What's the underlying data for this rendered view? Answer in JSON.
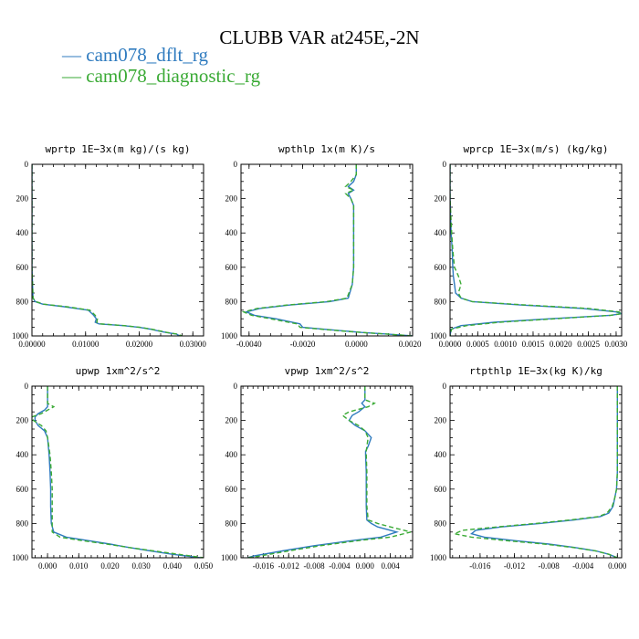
{
  "figure": {
    "title": "CLUBB VAR at245E,-2N"
  },
  "legend": [
    {
      "label": "— cam078_dflt_rg",
      "color": "#2f7bbf"
    },
    {
      "label": "— cam078_diagnostic_rg",
      "color": "#3aaa35"
    }
  ],
  "chart_data": [
    {
      "type": "line",
      "title": "wprtp  1E−3x(m kg)/(s kg)",
      "xlim": [
        0,
        0.032
      ],
      "ylim": [
        1000,
        0
      ],
      "xticks": [
        0.0,
        0.01,
        0.02,
        0.03
      ],
      "xtick_labels": [
        "0.00000",
        "0.01000",
        "0.02000",
        "0.03000"
      ],
      "yticks": [
        0,
        200,
        400,
        600,
        800,
        1000
      ],
      "ytick_labels": [
        "0",
        "200",
        "400",
        "600",
        "800",
        "1000"
      ],
      "series": [
        {
          "name": "cam078_dflt_rg",
          "color": "#2f7bbf",
          "dash": "",
          "y": [
            0,
            200,
            400,
            600,
            780,
            800,
            815,
            830,
            850,
            880,
            900,
            920,
            930,
            940,
            950,
            960,
            970,
            980,
            990,
            1000
          ],
          "x": [
            0,
            0,
            0,
            0,
            0.0002,
            0.0006,
            0.002,
            0.006,
            0.0105,
            0.0115,
            0.012,
            0.0118,
            0.0125,
            0.017,
            0.02,
            0.022,
            0.0235,
            0.025,
            0.027,
            0.0275
          ]
        },
        {
          "name": "cam078_diagnostic_rg",
          "color": "#3aaa35",
          "dash": "5,3",
          "y": [
            0,
            200,
            400,
            600,
            780,
            800,
            815,
            830,
            850,
            880,
            900,
            920,
            930,
            940,
            950,
            960,
            970,
            980,
            990,
            1000
          ],
          "x": [
            0,
            0,
            0,
            0,
            0.0002,
            0.0007,
            0.0022,
            0.0065,
            0.0108,
            0.0118,
            0.0122,
            0.0121,
            0.0128,
            0.0172,
            0.0202,
            0.0222,
            0.0238,
            0.0252,
            0.0272,
            0.028
          ]
        }
      ]
    },
    {
      "type": "line",
      "title": "wpthlp  1x(m K)/s",
      "xlim": [
        -0.0043,
        0.0021
      ],
      "ylim": [
        1000,
        0
      ],
      "xticks": [
        -0.004,
        -0.002,
        0.0,
        0.002
      ],
      "xtick_labels": [
        "-0.0040",
        "-0.0020",
        "0.0000",
        "0.0020"
      ],
      "yticks": [
        0,
        200,
        400,
        600,
        800,
        1000
      ],
      "ytick_labels": [
        "0",
        "200",
        "400",
        "600",
        "800",
        "1000"
      ],
      "series": [
        {
          "name": "cam078_dflt_rg",
          "color": "#2f7bbf",
          "dash": "",
          "y": [
            0,
            60,
            100,
            130,
            150,
            170,
            200,
            240,
            300,
            400,
            500,
            600,
            700,
            780,
            800,
            820,
            840,
            860,
            880,
            900,
            930,
            950,
            970,
            980,
            990,
            1000
          ],
          "x": [
            0,
            0,
            -0.0001,
            -0.0003,
            -0.0001,
            -0.0003,
            -0.0002,
            -0.0001,
            -0.0001,
            -0.0001,
            -0.0001,
            -0.0001,
            -0.00015,
            -0.0003,
            -0.001,
            -0.0025,
            -0.0036,
            -0.0041,
            -0.0038,
            -0.003,
            -0.0021,
            -0.002,
            -0.0005,
            0.0002,
            0.0012,
            0.0021
          ]
        },
        {
          "name": "cam078_diagnostic_rg",
          "color": "#3aaa35",
          "dash": "5,3",
          "y": [
            0,
            60,
            100,
            130,
            150,
            170,
            200,
            240,
            300,
            400,
            500,
            600,
            700,
            780,
            800,
            820,
            840,
            860,
            880,
            900,
            930,
            950,
            970,
            980,
            990,
            1000
          ],
          "x": [
            0,
            0,
            -0.0002,
            -0.0004,
            -0.0001,
            -0.0004,
            -0.0002,
            -0.0001,
            -0.0001,
            -0.0001,
            -0.0001,
            -0.0001,
            -0.00015,
            -0.00035,
            -0.0011,
            -0.0026,
            -0.0037,
            -0.0042,
            -0.0039,
            -0.0032,
            -0.0022,
            -0.0021,
            -0.0006,
            0.0002,
            0.0012,
            0.0021
          ]
        }
      ]
    },
    {
      "type": "line",
      "title": "wprcp  1E−3x(m/s) (kg/kg)",
      "xlim": [
        0,
        0.0031
      ],
      "ylim": [
        1000,
        0
      ],
      "xticks": [
        0.0,
        0.0005,
        0.001,
        0.0015,
        0.002,
        0.0025,
        0.003
      ],
      "xtick_labels": [
        "0.0000",
        "0.0005",
        "0.0010",
        "0.0015",
        "0.0020",
        "0.0025",
        "0.0030"
      ],
      "yticks": [
        0,
        200,
        400,
        600,
        800,
        1000
      ],
      "ytick_labels": [
        "0",
        "200",
        "400",
        "600",
        "800",
        "1000"
      ],
      "series": [
        {
          "name": "cam078_dflt_rg",
          "color": "#2f7bbf",
          "dash": "",
          "y": [
            0,
            200,
            400,
            500,
            600,
            650,
            700,
            750,
            780,
            800,
            820,
            840,
            860,
            870,
            880,
            900,
            920,
            940,
            960,
            1000
          ],
          "x": [
            0,
            0,
            2e-05,
            4e-05,
            5e-05,
            6e-05,
            8e-05,
            0.0001,
            0.0002,
            0.0004,
            0.0013,
            0.0024,
            0.003,
            0.0031,
            0.0029,
            0.0018,
            0.0008,
            0.0002,
            2e-05,
            0
          ]
        },
        {
          "name": "cam078_diagnostic_rg",
          "color": "#3aaa35",
          "dash": "5,3",
          "y": [
            0,
            200,
            400,
            500,
            600,
            650,
            700,
            750,
            780,
            800,
            820,
            840,
            860,
            870,
            880,
            900,
            920,
            940,
            960,
            1000
          ],
          "x": [
            0,
            0,
            3e-05,
            5e-05,
            8e-05,
            0.00015,
            0.0002,
            0.00015,
            0.0002,
            0.0004,
            0.0014,
            0.0025,
            0.00305,
            0.0031,
            0.0029,
            0.0019,
            0.0009,
            0.0003,
            3e-05,
            0
          ]
        }
      ]
    },
    {
      "type": "line",
      "title": "upwp  1xm^2/s^2",
      "xlim": [
        -0.005,
        0.05
      ],
      "ylim": [
        1000,
        0
      ],
      "xticks": [
        0.0,
        0.01,
        0.02,
        0.03,
        0.04,
        0.05
      ],
      "xtick_labels": [
        "0.000",
        "0.010",
        "0.020",
        "0.030",
        "0.040",
        "0.050"
      ],
      "yticks": [
        0,
        200,
        400,
        600,
        800,
        1000
      ],
      "ytick_labels": [
        "0",
        "200",
        "400",
        "600",
        "800",
        "1000"
      ],
      "series": [
        {
          "name": "cam078_dflt_rg",
          "color": "#2f7bbf",
          "dash": "",
          "y": [
            0,
            100,
            120,
            140,
            160,
            180,
            200,
            230,
            260,
            300,
            400,
            500,
            600,
            700,
            800,
            850,
            880,
            900,
            920,
            940,
            960,
            980,
            1000
          ],
          "x": [
            0,
            0,
            0,
            -0.001,
            -0.003,
            -0.004,
            -0.004,
            -0.003,
            -0.001,
            0,
            0.0005,
            0.0008,
            0.001,
            0.001,
            0.0012,
            0.002,
            0.006,
            0.013,
            0.02,
            0.026,
            0.033,
            0.04,
            0.049
          ]
        },
        {
          "name": "cam078_diagnostic_rg",
          "color": "#3aaa35",
          "dash": "5,3",
          "y": [
            0,
            100,
            120,
            140,
            160,
            180,
            200,
            230,
            260,
            300,
            400,
            500,
            600,
            700,
            800,
            850,
            880,
            900,
            920,
            940,
            960,
            980,
            1000
          ],
          "x": [
            0,
            0,
            0.002,
            0,
            -0.002,
            -0.005,
            -0.0045,
            -0.002,
            -0.0005,
            0,
            0.0008,
            0.0012,
            0.0015,
            0.0015,
            0.0015,
            0.0015,
            0.004,
            0.011,
            0.019,
            0.026,
            0.034,
            0.042,
            0.05
          ]
        }
      ]
    },
    {
      "type": "line",
      "title": "vpwp  1xm^2/s^2",
      "xlim": [
        -0.0195,
        0.0075
      ],
      "ylim": [
        1000,
        0
      ],
      "xticks": [
        -0.016,
        -0.012,
        -0.008,
        -0.004,
        0.0,
        0.004
      ],
      "xtick_labels": [
        "-0.016",
        "-0.012",
        "-0.008",
        "-0.004",
        "0.000",
        "0.004"
      ],
      "yticks": [
        0,
        200,
        400,
        600,
        800,
        1000
      ],
      "ytick_labels": [
        "0",
        "200",
        "400",
        "600",
        "800",
        "1000"
      ],
      "series": [
        {
          "name": "cam078_dflt_rg",
          "color": "#2f7bbf",
          "dash": "",
          "y": [
            0,
            80,
            100,
            120,
            150,
            170,
            200,
            230,
            260,
            300,
            350,
            380,
            400,
            500,
            600,
            700,
            780,
            800,
            820,
            850,
            880,
            900,
            930,
            960,
            990,
            1000
          ],
          "x": [
            0,
            0,
            -0.0005,
            0,
            -0.001,
            -0.002,
            -0.0025,
            -0.0015,
            0,
            0.001,
            0.0005,
            0.0001,
            0.0001,
            0.0002,
            0.0002,
            0.0002,
            0.0003,
            0.001,
            0.002,
            0.005,
            0.0025,
            -0.002,
            -0.008,
            -0.013,
            -0.0175,
            -0.0185
          ]
        },
        {
          "name": "cam078_diagnostic_rg",
          "color": "#3aaa35",
          "dash": "5,3",
          "y": [
            0,
            80,
            100,
            120,
            150,
            170,
            200,
            230,
            260,
            300,
            350,
            380,
            400,
            500,
            600,
            700,
            780,
            800,
            820,
            850,
            880,
            900,
            930,
            960,
            990,
            1000
          ],
          "x": [
            0,
            0,
            0.0015,
            0.0005,
            -0.0025,
            -0.0035,
            -0.0025,
            -0.001,
            0,
            0.0005,
            0.0003,
            0.0002,
            0.0002,
            0.0003,
            0.0003,
            0.0003,
            0.0005,
            0.002,
            0.004,
            0.0072,
            0.004,
            -0.001,
            -0.007,
            -0.012,
            -0.0165,
            -0.0185
          ]
        }
      ]
    },
    {
      "type": "line",
      "title": "rtpthlp  1E−3x(kg K)/kg",
      "xlim": [
        -0.0195,
        0.0005
      ],
      "ylim": [
        1000,
        0
      ],
      "xticks": [
        -0.016,
        -0.012,
        -0.008,
        -0.004,
        0.0
      ],
      "xtick_labels": [
        "-0.016",
        "-0.012",
        "-0.008",
        "-0.004",
        "0.000"
      ],
      "yticks": [
        0,
        200,
        400,
        600,
        800,
        1000
      ],
      "ytick_labels": [
        "0",
        "200",
        "400",
        "600",
        "800",
        "1000"
      ],
      "series": [
        {
          "name": "cam078_dflt_rg",
          "color": "#2f7bbf",
          "dash": "",
          "y": [
            0,
            200,
            400,
            500,
            600,
            650,
            700,
            740,
            760,
            780,
            800,
            820,
            840,
            860,
            880,
            900,
            920,
            940,
            960,
            980,
            1000
          ],
          "x": [
            0,
            0,
            0,
            0,
            -0.0001,
            -0.0003,
            -0.0005,
            -0.001,
            -0.002,
            -0.005,
            -0.009,
            -0.0135,
            -0.0165,
            -0.017,
            -0.0155,
            -0.012,
            -0.008,
            -0.005,
            -0.0025,
            -0.001,
            0
          ]
        },
        {
          "name": "cam078_diagnostic_rg",
          "color": "#3aaa35",
          "dash": "5,3",
          "y": [
            0,
            200,
            400,
            500,
            600,
            650,
            700,
            740,
            760,
            780,
            800,
            820,
            840,
            860,
            880,
            900,
            920,
            940,
            960,
            980,
            1000
          ],
          "x": [
            0,
            0,
            0,
            0,
            -0.0001,
            -0.0003,
            -0.0006,
            -0.0012,
            -0.0022,
            -0.0055,
            -0.0095,
            -0.014,
            -0.018,
            -0.019,
            -0.017,
            -0.013,
            -0.0085,
            -0.0052,
            -0.0025,
            -0.001,
            0
          ]
        }
      ]
    }
  ]
}
